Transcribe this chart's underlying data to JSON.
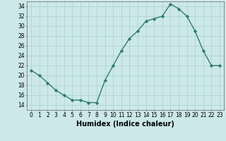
{
  "x": [
    0,
    1,
    2,
    3,
    4,
    5,
    6,
    7,
    8,
    9,
    10,
    11,
    12,
    13,
    14,
    15,
    16,
    17,
    18,
    19,
    20,
    21,
    22,
    23
  ],
  "y": [
    21,
    20,
    18.5,
    17,
    16,
    15,
    15,
    14.5,
    14.5,
    19,
    22,
    25,
    27.5,
    29,
    31,
    31.5,
    32,
    34.5,
    33.5,
    32,
    29,
    25,
    22,
    22
  ],
  "line_color": "#2d7d6e",
  "marker": "D",
  "marker_size": 2.2,
  "bg_color": "#cce8e8",
  "grid_color": "#aad0d0",
  "xlabel": "Humidex (Indice chaleur)",
  "xlim": [
    -0.5,
    23.5
  ],
  "ylim": [
    13,
    35
  ],
  "yticks": [
    14,
    16,
    18,
    20,
    22,
    24,
    26,
    28,
    30,
    32,
    34
  ],
  "xticks": [
    0,
    1,
    2,
    3,
    4,
    5,
    6,
    7,
    8,
    9,
    10,
    11,
    12,
    13,
    14,
    15,
    16,
    17,
    18,
    19,
    20,
    21,
    22,
    23
  ],
  "tick_fontsize": 5.5,
  "label_fontsize": 7.0,
  "line_width": 1.0
}
